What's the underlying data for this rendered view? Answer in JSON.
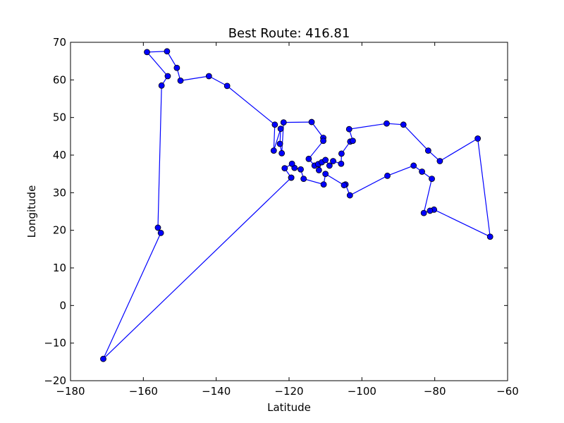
{
  "chart_data": {
    "type": "line",
    "title": "Best Route: 416.81",
    "xlabel": "Latitude",
    "ylabel": "Longitude",
    "xlim": [
      -180,
      -60
    ],
    "ylim": [
      -20,
      70
    ],
    "xticks": [
      -180,
      -160,
      -140,
      -120,
      -100,
      -80,
      -60
    ],
    "yticks": [
      -20,
      -10,
      0,
      10,
      20,
      30,
      40,
      50,
      60,
      70
    ],
    "grid": false,
    "line_color": "#0000ff",
    "marker_color": "#0000ff",
    "marker_edge_color": "#000000",
    "points": [
      [
        -119.4,
        34.0
      ],
      [
        -171.0,
        -14.2
      ],
      [
        -155.2,
        19.3
      ],
      [
        -156.0,
        20.7
      ],
      [
        -155.0,
        58.5
      ],
      [
        -153.3,
        61.0
      ],
      [
        -159.0,
        67.4
      ],
      [
        -153.5,
        67.6
      ],
      [
        -150.8,
        63.2
      ],
      [
        -149.8,
        59.8
      ],
      [
        -142.0,
        61.0
      ],
      [
        -137.0,
        58.4
      ],
      [
        -123.9,
        48.1
      ],
      [
        -124.2,
        41.2
      ],
      [
        -122.3,
        47.0
      ],
      [
        -122.5,
        43.0
      ],
      [
        -122.0,
        40.5
      ],
      [
        -121.5,
        48.7
      ],
      [
        -113.8,
        48.8
      ],
      [
        -110.6,
        44.6
      ],
      [
        -110.6,
        43.8
      ],
      [
        -114.6,
        39.0
      ],
      [
        -113.0,
        37.2
      ],
      [
        -112.0,
        37.6
      ],
      [
        -111.8,
        36.0
      ],
      [
        -111.0,
        38.1
      ],
      [
        -110.0,
        38.7
      ],
      [
        -108.9,
        37.2
      ],
      [
        -107.9,
        38.4
      ],
      [
        -105.7,
        37.7
      ],
      [
        -105.6,
        40.4
      ],
      [
        -103.2,
        43.6
      ],
      [
        -102.5,
        43.8
      ],
      [
        -103.5,
        46.9
      ],
      [
        -93.2,
        48.4
      ],
      [
        -88.6,
        48.1
      ],
      [
        -81.8,
        41.2
      ],
      [
        -78.6,
        38.4
      ],
      [
        -68.2,
        44.4
      ],
      [
        -64.8,
        18.3
      ],
      [
        -80.2,
        25.5
      ],
      [
        -81.3,
        25.2
      ],
      [
        -83.0,
        24.6
      ],
      [
        -80.8,
        33.7
      ],
      [
        -83.5,
        35.6
      ],
      [
        -85.8,
        37.2
      ],
      [
        -93.0,
        34.5
      ],
      [
        -103.3,
        29.3
      ],
      [
        -104.5,
        32.2
      ],
      [
        -104.9,
        32.0
      ],
      [
        -110.0,
        35.0
      ],
      [
        -110.5,
        32.2
      ],
      [
        -116.0,
        33.7
      ],
      [
        -116.8,
        36.2
      ],
      [
        -118.5,
        36.6
      ],
      [
        -119.2,
        37.7
      ],
      [
        -121.2,
        36.5
      ],
      [
        -119.4,
        34.0
      ]
    ]
  }
}
